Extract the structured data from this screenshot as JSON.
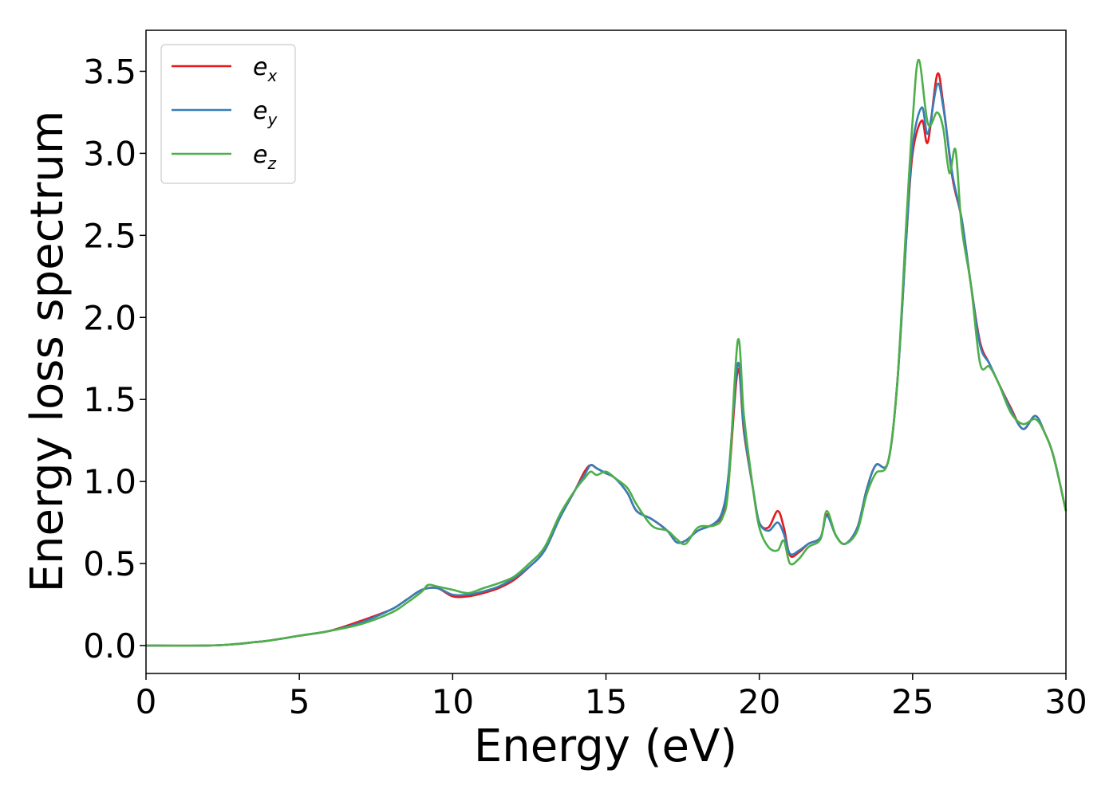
{
  "chart_data": {
    "type": "line",
    "title": "",
    "xlabel": "Energy (eV)",
    "ylabel": "Energy loss spectrum",
    "xlim": [
      0,
      30
    ],
    "ylim": [
      -0.17,
      3.75
    ],
    "xticks": [
      0,
      5,
      10,
      15,
      20,
      25,
      30
    ],
    "xtick_labels": [
      "0",
      "5",
      "10",
      "15",
      "20",
      "25",
      "30"
    ],
    "yticks": [
      0.0,
      0.5,
      1.0,
      1.5,
      2.0,
      2.5,
      3.0,
      3.5
    ],
    "ytick_labels": [
      "0.0",
      "0.5",
      "1.0",
      "1.5",
      "2.0",
      "2.5",
      "3.0",
      "3.5"
    ],
    "grid": false,
    "legend_position": "top-left",
    "series": [
      {
        "name": "e_x",
        "label_main": "e",
        "label_sub": "x",
        "color": "#e41a1c",
        "points": [
          [
            0,
            0
          ],
          [
            2,
            0.0
          ],
          [
            3,
            0.01
          ],
          [
            3.5,
            0.02
          ],
          [
            4,
            0.03
          ],
          [
            5,
            0.06
          ],
          [
            6,
            0.09
          ],
          [
            7,
            0.15
          ],
          [
            8,
            0.22
          ],
          [
            8.5,
            0.28
          ],
          [
            9,
            0.34
          ],
          [
            9.5,
            0.35
          ],
          [
            10,
            0.3
          ],
          [
            10.5,
            0.3
          ],
          [
            11,
            0.32
          ],
          [
            11.5,
            0.35
          ],
          [
            12,
            0.4
          ],
          [
            12.5,
            0.48
          ],
          [
            13,
            0.58
          ],
          [
            13.5,
            0.78
          ],
          [
            14,
            0.95
          ],
          [
            14.3,
            1.06
          ],
          [
            14.5,
            1.1
          ],
          [
            14.7,
            1.08
          ],
          [
            15,
            1.05
          ],
          [
            15.3,
            1.02
          ],
          [
            15.7,
            0.93
          ],
          [
            16,
            0.82
          ],
          [
            16.5,
            0.77
          ],
          [
            17,
            0.7
          ],
          [
            17.3,
            0.63
          ],
          [
            17.6,
            0.64
          ],
          [
            18,
            0.7
          ],
          [
            18.5,
            0.74
          ],
          [
            18.8,
            0.8
          ],
          [
            19,
            1.0
          ],
          [
            19.3,
            1.68
          ],
          [
            19.5,
            1.3
          ],
          [
            19.8,
            0.95
          ],
          [
            20,
            0.75
          ],
          [
            20.3,
            0.72
          ],
          [
            20.6,
            0.82
          ],
          [
            20.8,
            0.72
          ],
          [
            21,
            0.55
          ],
          [
            21.3,
            0.57
          ],
          [
            21.6,
            0.62
          ],
          [
            22,
            0.66
          ],
          [
            22.2,
            0.8
          ],
          [
            22.5,
            0.67
          ],
          [
            22.8,
            0.62
          ],
          [
            23.2,
            0.72
          ],
          [
            23.5,
            0.95
          ],
          [
            23.8,
            1.1
          ],
          [
            24.2,
            1.12
          ],
          [
            24.5,
            1.6
          ],
          [
            24.8,
            2.5
          ],
          [
            25.0,
            3.0
          ],
          [
            25.3,
            3.2
          ],
          [
            25.5,
            3.07
          ],
          [
            25.8,
            3.48
          ],
          [
            26.0,
            3.3
          ],
          [
            26.3,
            2.85
          ],
          [
            26.6,
            2.6
          ],
          [
            26.9,
            2.2
          ],
          [
            27.2,
            1.85
          ],
          [
            27.5,
            1.72
          ],
          [
            27.8,
            1.6
          ],
          [
            28.2,
            1.45
          ],
          [
            28.6,
            1.32
          ],
          [
            29,
            1.4
          ],
          [
            29.3,
            1.3
          ],
          [
            29.6,
            1.15
          ],
          [
            30,
            0.82
          ]
        ]
      },
      {
        "name": "e_y",
        "label_main": "e",
        "label_sub": "y",
        "color": "#377eb8",
        "points": [
          [
            0,
            0
          ],
          [
            2,
            0.0
          ],
          [
            3,
            0.01
          ],
          [
            3.5,
            0.02
          ],
          [
            4,
            0.03
          ],
          [
            5,
            0.06
          ],
          [
            6,
            0.09
          ],
          [
            7,
            0.14
          ],
          [
            8,
            0.22
          ],
          [
            8.5,
            0.28
          ],
          [
            9,
            0.34
          ],
          [
            9.5,
            0.35
          ],
          [
            10,
            0.31
          ],
          [
            10.5,
            0.31
          ],
          [
            11,
            0.33
          ],
          [
            11.5,
            0.36
          ],
          [
            12,
            0.41
          ],
          [
            12.5,
            0.48
          ],
          [
            13,
            0.58
          ],
          [
            13.5,
            0.78
          ],
          [
            14,
            0.95
          ],
          [
            14.3,
            1.04
          ],
          [
            14.5,
            1.1
          ],
          [
            14.7,
            1.08
          ],
          [
            15,
            1.05
          ],
          [
            15.3,
            1.02
          ],
          [
            15.7,
            0.93
          ],
          [
            16,
            0.82
          ],
          [
            16.5,
            0.77
          ],
          [
            17,
            0.7
          ],
          [
            17.3,
            0.63
          ],
          [
            17.6,
            0.64
          ],
          [
            18,
            0.7
          ],
          [
            18.5,
            0.74
          ],
          [
            18.8,
            0.82
          ],
          [
            19,
            1.05
          ],
          [
            19.3,
            1.72
          ],
          [
            19.5,
            1.32
          ],
          [
            19.8,
            0.95
          ],
          [
            20,
            0.75
          ],
          [
            20.3,
            0.7
          ],
          [
            20.6,
            0.75
          ],
          [
            20.8,
            0.68
          ],
          [
            21,
            0.56
          ],
          [
            21.3,
            0.58
          ],
          [
            21.6,
            0.62
          ],
          [
            22,
            0.66
          ],
          [
            22.2,
            0.79
          ],
          [
            22.5,
            0.67
          ],
          [
            22.8,
            0.62
          ],
          [
            23.2,
            0.72
          ],
          [
            23.5,
            0.95
          ],
          [
            23.8,
            1.1
          ],
          [
            24.2,
            1.12
          ],
          [
            24.5,
            1.6
          ],
          [
            24.8,
            2.5
          ],
          [
            25.0,
            3.05
          ],
          [
            25.3,
            3.28
          ],
          [
            25.5,
            3.12
          ],
          [
            25.8,
            3.42
          ],
          [
            26.0,
            3.28
          ],
          [
            26.3,
            2.87
          ],
          [
            26.6,
            2.6
          ],
          [
            26.9,
            2.2
          ],
          [
            27.2,
            1.83
          ],
          [
            27.5,
            1.72
          ],
          [
            27.8,
            1.6
          ],
          [
            28.2,
            1.44
          ],
          [
            28.6,
            1.32
          ],
          [
            29,
            1.4
          ],
          [
            29.3,
            1.3
          ],
          [
            29.6,
            1.15
          ],
          [
            30,
            0.82
          ]
        ]
      },
      {
        "name": "e_z",
        "label_main": "e",
        "label_sub": "z",
        "color": "#4daf4a",
        "points": [
          [
            0,
            0
          ],
          [
            2,
            0.0
          ],
          [
            3,
            0.01
          ],
          [
            3.5,
            0.02
          ],
          [
            4,
            0.03
          ],
          [
            5,
            0.06
          ],
          [
            6,
            0.09
          ],
          [
            7,
            0.13
          ],
          [
            8,
            0.2
          ],
          [
            8.5,
            0.26
          ],
          [
            9,
            0.33
          ],
          [
            9.2,
            0.37
          ],
          [
            9.5,
            0.36
          ],
          [
            10,
            0.34
          ],
          [
            10.5,
            0.32
          ],
          [
            11,
            0.35
          ],
          [
            11.5,
            0.38
          ],
          [
            12,
            0.42
          ],
          [
            12.5,
            0.5
          ],
          [
            13,
            0.6
          ],
          [
            13.5,
            0.8
          ],
          [
            14,
            0.95
          ],
          [
            14.3,
            1.02
          ],
          [
            14.5,
            1.06
          ],
          [
            14.7,
            1.04
          ],
          [
            15,
            1.06
          ],
          [
            15.3,
            1.02
          ],
          [
            15.7,
            0.96
          ],
          [
            16,
            0.86
          ],
          [
            16.5,
            0.73
          ],
          [
            17,
            0.7
          ],
          [
            17.3,
            0.65
          ],
          [
            17.6,
            0.62
          ],
          [
            18,
            0.72
          ],
          [
            18.5,
            0.73
          ],
          [
            18.8,
            0.78
          ],
          [
            19,
            0.98
          ],
          [
            19.3,
            1.86
          ],
          [
            19.5,
            1.4
          ],
          [
            19.8,
            0.95
          ],
          [
            20,
            0.72
          ],
          [
            20.3,
            0.6
          ],
          [
            20.6,
            0.58
          ],
          [
            20.8,
            0.64
          ],
          [
            21,
            0.5
          ],
          [
            21.3,
            0.53
          ],
          [
            21.6,
            0.6
          ],
          [
            22,
            0.65
          ],
          [
            22.2,
            0.82
          ],
          [
            22.5,
            0.67
          ],
          [
            22.8,
            0.62
          ],
          [
            23.2,
            0.7
          ],
          [
            23.5,
            0.92
          ],
          [
            23.8,
            1.05
          ],
          [
            24.2,
            1.12
          ],
          [
            24.5,
            1.6
          ],
          [
            24.8,
            2.6
          ],
          [
            25.0,
            3.2
          ],
          [
            25.2,
            3.57
          ],
          [
            25.5,
            3.18
          ],
          [
            25.8,
            3.25
          ],
          [
            26.0,
            3.15
          ],
          [
            26.2,
            2.88
          ],
          [
            26.4,
            3.02
          ],
          [
            26.6,
            2.55
          ],
          [
            26.9,
            2.2
          ],
          [
            27.2,
            1.72
          ],
          [
            27.5,
            1.7
          ],
          [
            27.8,
            1.6
          ],
          [
            28.2,
            1.42
          ],
          [
            28.6,
            1.35
          ],
          [
            29,
            1.38
          ],
          [
            29.3,
            1.3
          ],
          [
            29.6,
            1.15
          ],
          [
            30,
            0.82
          ]
        ]
      }
    ]
  }
}
